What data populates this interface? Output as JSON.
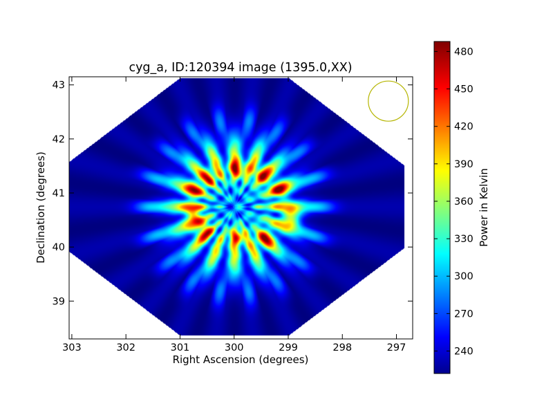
{
  "chart_data": {
    "type": "heatmap",
    "title": "cyg_a, ID:120394 image (1395.0,XX)",
    "xlabel": "Right Ascension (degrees)",
    "ylabel": "Declination (degrees)",
    "x_ticks": [
      "303",
      "302",
      "301",
      "300",
      "299",
      "298",
      "297"
    ],
    "y_ticks": [
      "39",
      "40",
      "41",
      "42",
      "43"
    ],
    "xlim": [
      303.05,
      296.7
    ],
    "ylim": [
      38.3,
      43.15
    ],
    "colorbar": {
      "label": "Power in Kelvin",
      "range": [
        222,
        488
      ],
      "ticks": [
        "240",
        "270",
        "300",
        "330",
        "360",
        "390",
        "420",
        "450",
        "480"
      ],
      "colormap": "jet"
    },
    "beam_circle": {
      "ra": 297.15,
      "dec": 42.7,
      "color": "#b5b500"
    },
    "map": {
      "center_ra": 300.0,
      "center_dec": 40.75,
      "background_level": 228,
      "ring_peak_level": 470,
      "hotspots": [
        {
          "ra": 299.95,
          "dec": 41.45,
          "value": 470
        },
        {
          "ra": 299.5,
          "dec": 41.35,
          "value": 455
        },
        {
          "ra": 299.15,
          "dec": 41.05,
          "value": 445
        },
        {
          "ra": 298.95,
          "dec": 40.55,
          "value": 460
        },
        {
          "ra": 299.45,
          "dec": 40.15,
          "value": 445
        },
        {
          "ra": 299.95,
          "dec": 40.2,
          "value": 450
        },
        {
          "ra": 300.55,
          "dec": 40.3,
          "value": 440
        },
        {
          "ra": 300.75,
          "dec": 40.6,
          "value": 455
        },
        {
          "ra": 300.75,
          "dec": 41.05,
          "value": 430
        },
        {
          "ra": 300.45,
          "dec": 41.3,
          "value": 425
        }
      ]
    }
  },
  "colors": {
    "frame": "#000000",
    "circle": "#b5b500",
    "background_blue": "#00008f"
  }
}
